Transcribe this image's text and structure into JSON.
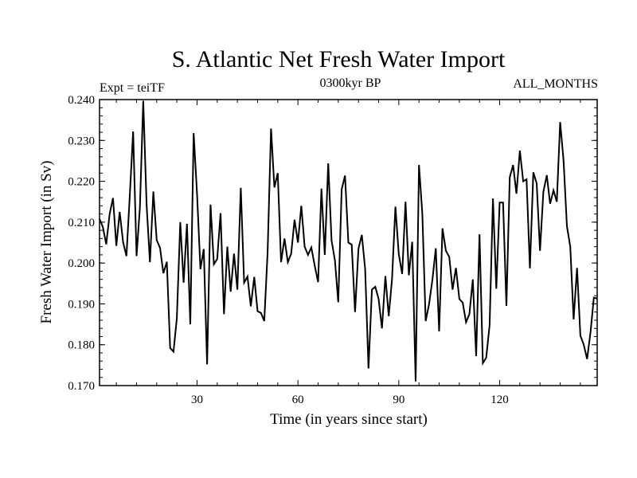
{
  "chart_data": {
    "type": "line",
    "title": "S. Atlantic Net Fresh Water Import",
    "subtitle_left": "Expt = teiTF",
    "subtitle_center": "0300kyr BP",
    "subtitle_right": "ALL_MONTHS",
    "xlabel": "Time (in years since start)",
    "ylabel": "Fresh Water Import (in Sv)",
    "xlim": [
      1,
      149
    ],
    "ylim": [
      0.17,
      0.24
    ],
    "x_ticks": [
      30,
      60,
      90,
      120
    ],
    "x_tick_labels": [
      "30",
      "60",
      "90",
      "120"
    ],
    "y_ticks": [
      0.17,
      0.18,
      0.19,
      0.2,
      0.21,
      0.22,
      0.23,
      0.24
    ],
    "y_tick_labels": [
      "0.170",
      "0.180",
      "0.190",
      "0.200",
      "0.210",
      "0.220",
      "0.230",
      "0.240"
    ],
    "series": [
      {
        "name": "Fresh Water Import",
        "x": [
          1,
          2,
          3,
          4,
          5,
          6,
          7,
          8,
          9,
          10,
          11,
          12,
          13,
          14,
          15,
          16,
          17,
          18,
          19,
          20,
          21,
          22,
          23,
          24,
          25,
          26,
          27,
          28,
          29,
          30,
          31,
          32,
          33,
          34,
          35,
          36,
          37,
          38,
          39,
          40,
          41,
          42,
          43,
          44,
          45,
          46,
          47,
          48,
          49,
          50,
          51,
          52,
          53,
          54,
          55,
          56,
          57,
          58,
          59,
          60,
          61,
          62,
          63,
          64,
          65,
          66,
          67,
          68,
          69,
          70,
          71,
          72,
          73,
          74,
          75,
          76,
          77,
          78,
          79,
          80,
          81,
          82,
          83,
          84,
          85,
          86,
          87,
          88,
          89,
          90,
          91,
          92,
          93,
          94,
          95,
          96,
          97,
          98,
          99,
          100,
          101,
          102,
          103,
          104,
          105,
          106,
          107,
          108,
          109,
          110,
          111,
          112,
          113,
          114,
          115,
          116,
          117,
          118,
          119,
          120,
          121,
          122,
          123,
          124,
          125,
          126,
          127,
          128,
          129,
          130,
          131,
          132,
          133,
          134,
          135,
          136,
          137,
          138,
          139,
          140,
          141,
          142,
          143,
          144,
          145,
          146,
          147,
          148,
          149
        ],
        "values": [
          0.2108,
          0.2088,
          0.2046,
          0.212,
          0.2159,
          0.2042,
          0.2125,
          0.2051,
          0.2017,
          0.2165,
          0.2322,
          0.2017,
          0.2136,
          0.2397,
          0.2143,
          0.2002,
          0.2175,
          0.2056,
          0.2037,
          0.1975,
          0.2003,
          0.1792,
          0.1783,
          0.1865,
          0.21,
          0.1952,
          0.2096,
          0.185,
          0.2318,
          0.2168,
          0.1985,
          0.2034,
          0.1752,
          0.2143,
          0.1997,
          0.201,
          0.2122,
          0.1875,
          0.204,
          0.193,
          0.2023,
          0.1935,
          0.2184,
          0.1952,
          0.1967,
          0.1894,
          0.1966,
          0.1882,
          0.1878,
          0.1858,
          0.2027,
          0.2329,
          0.2185,
          0.222,
          0.2002,
          0.206,
          0.2002,
          0.2023,
          0.2106,
          0.205,
          0.214,
          0.204,
          0.202,
          0.2038,
          0.1993,
          0.1953,
          0.2182,
          0.202,
          0.2244,
          0.2055,
          0.2007,
          0.1904,
          0.218,
          0.2214,
          0.205,
          0.2045,
          0.188,
          0.2035,
          0.2069,
          0.1985,
          0.1742,
          0.1935,
          0.1942,
          0.1912,
          0.184,
          0.1968,
          0.187,
          0.1962,
          0.2138,
          0.2022,
          0.1973,
          0.215,
          0.197,
          0.2052,
          0.171,
          0.224,
          0.212,
          0.1858,
          0.19,
          0.196,
          0.2036,
          0.1833,
          0.2085,
          0.203,
          0.2015,
          0.1935,
          0.1988,
          0.1912,
          0.1903,
          0.1855,
          0.1875,
          0.196,
          0.1772,
          0.207,
          0.1755,
          0.1768,
          0.1848,
          0.2158,
          0.1937,
          0.2148,
          0.2148,
          0.1895,
          0.221,
          0.224,
          0.217,
          0.2275,
          0.22,
          0.2205,
          0.1987,
          0.2222,
          0.2195,
          0.203,
          0.2174,
          0.2215,
          0.2145,
          0.2178,
          0.215,
          0.2345,
          0.225,
          0.209,
          0.204,
          0.1862,
          0.1988,
          0.1822,
          0.18,
          0.1765,
          0.183,
          0.1915,
          0.1913
        ]
      }
    ]
  }
}
